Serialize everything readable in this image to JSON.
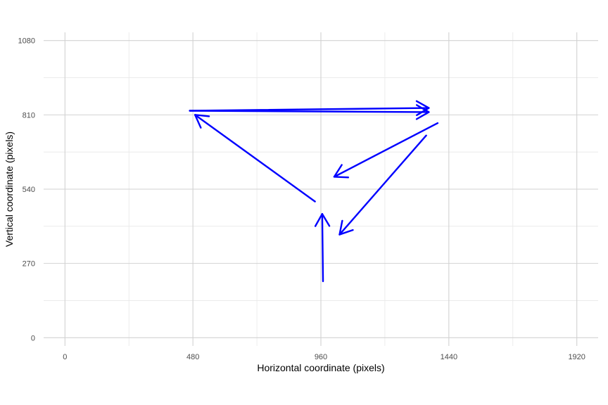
{
  "chart_data": {
    "type": "line",
    "title": "",
    "xlabel": "Horizontal coordinate (pixels)",
    "ylabel": "Vertical coordinate (pixels)",
    "xlim": [
      -80,
      2000
    ],
    "ylim": [
      -30,
      1110
    ],
    "x_ticks": [
      0,
      480,
      960,
      1440,
      1920
    ],
    "y_ticks": [
      0,
      270,
      540,
      810,
      1080
    ],
    "x_minor": [
      240,
      720,
      1200,
      1680
    ],
    "y_minor": [
      135,
      405,
      675,
      945
    ],
    "grid": true,
    "series": [
      {
        "style": "arrows",
        "color": "#0000ff",
        "arrows": [
          {
            "x_start": 968,
            "y_start": 205,
            "x_end": 965,
            "y_end": 450
          },
          {
            "x_start": 938,
            "y_start": 495,
            "x_end": 488,
            "y_end": 810
          },
          {
            "x_start": 468,
            "y_start": 825,
            "x_end": 1365,
            "y_end": 835
          },
          {
            "x_start": 468,
            "y_start": 825,
            "x_end": 1365,
            "y_end": 820
          },
          {
            "x_start": 1398,
            "y_start": 780,
            "x_end": 1010,
            "y_end": 585
          },
          {
            "x_start": 1355,
            "y_start": 735,
            "x_end": 1030,
            "y_end": 375
          }
        ]
      }
    ]
  }
}
